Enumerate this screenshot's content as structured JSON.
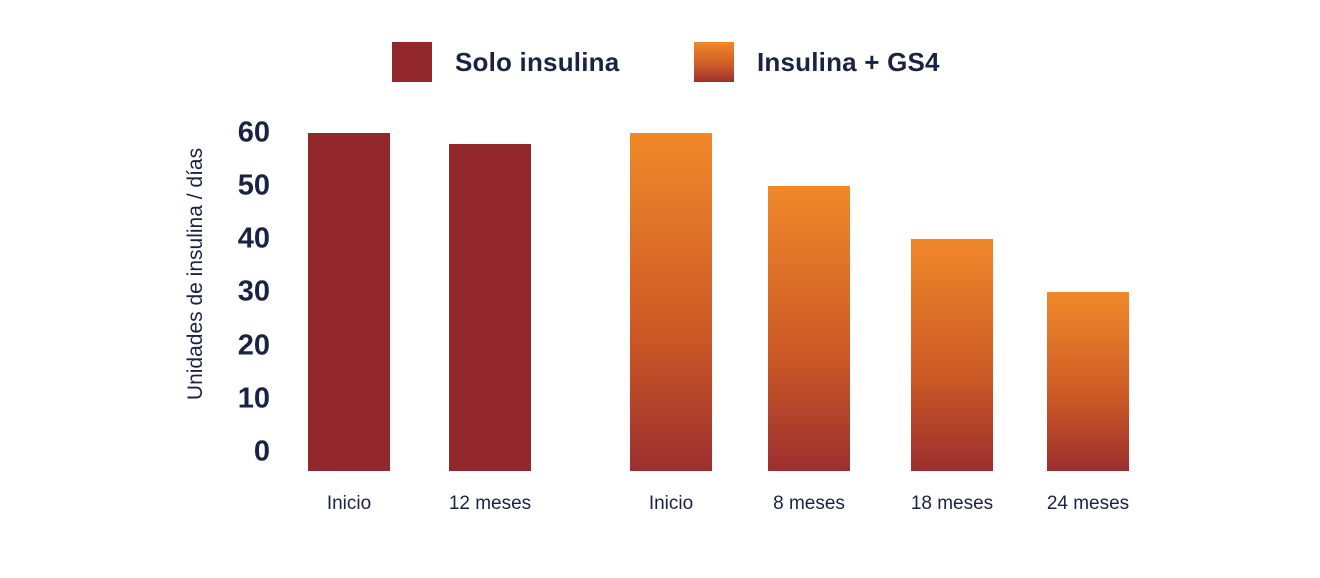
{
  "legend": {
    "items": [
      {
        "label": "Solo insulina"
      },
      {
        "label": "Insulina + GS4"
      }
    ]
  },
  "chart_data": {
    "type": "bar",
    "title": "",
    "xlabel": "",
    "ylabel": "Unidades de insulina / días",
    "ylim": [
      0,
      60
    ],
    "y_ticks": [
      60,
      50,
      40,
      30,
      20,
      10,
      0
    ],
    "grid": false,
    "legend_position": "top",
    "categories": [
      "Inicio",
      "12 meses",
      "Inicio",
      "8 meses",
      "18 meses",
      "24 meses"
    ],
    "series": [
      {
        "name": "Solo insulina",
        "values": [
          60,
          58,
          null,
          null,
          null,
          null
        ]
      },
      {
        "name": "Insulina + GS4",
        "values": [
          null,
          null,
          60,
          50,
          40,
          30
        ]
      }
    ],
    "bars": [
      {
        "category": "Inicio",
        "series": "Solo insulina",
        "value": 60
      },
      {
        "category": "12 meses",
        "series": "Solo insulina",
        "value": 58
      },
      {
        "category": "Inicio",
        "series": "Insulina + GS4",
        "value": 60
      },
      {
        "category": "8 meses",
        "series": "Insulina + GS4",
        "value": 50
      },
      {
        "category": "18 meses",
        "series": "Insulina + GS4",
        "value": 40
      },
      {
        "category": "24 meses",
        "series": "Insulina + GS4",
        "value": 30
      }
    ]
  },
  "colors": {
    "background": "#ffffff",
    "text_navy": "#1b2343",
    "bar_red": "#93282c",
    "bar_orange_top": "#f0892a",
    "bar_orange_mid": "#cd5a25",
    "bar_orange_bottom": "#9c2f2f"
  }
}
